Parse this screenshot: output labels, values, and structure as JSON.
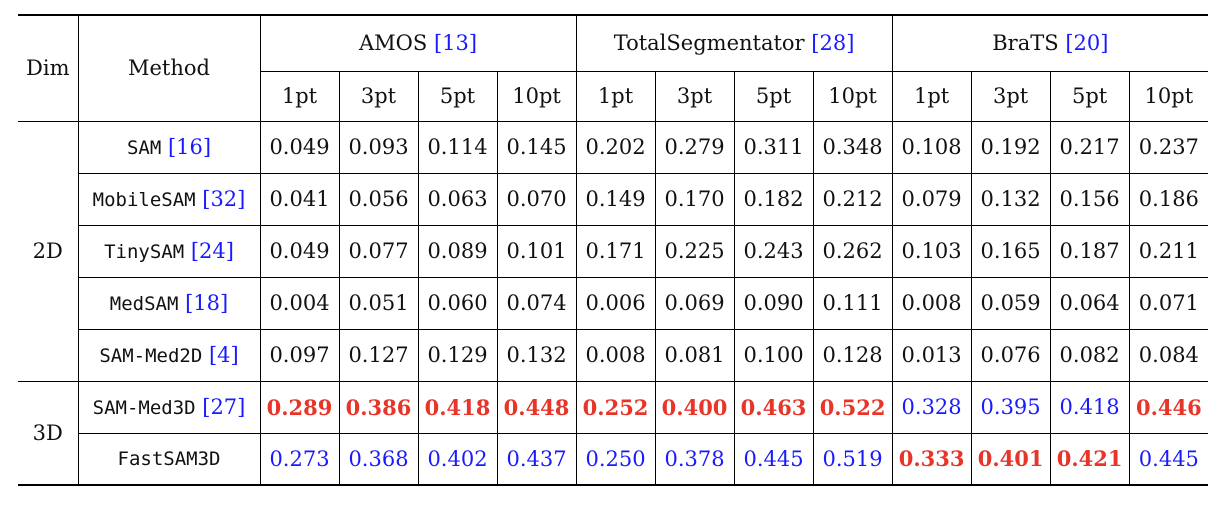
{
  "table": {
    "header": {
      "dim": "Dim",
      "method": "Method",
      "datasets": [
        {
          "name": "AMOS",
          "ref": "13"
        },
        {
          "name": "TotalSegmentator",
          "ref": "28"
        },
        {
          "name": "BraTS",
          "ref": "20"
        }
      ],
      "points": [
        "1pt",
        "3pt",
        "5pt",
        "10pt",
        "1pt",
        "3pt",
        "5pt",
        "10pt",
        "1pt",
        "3pt",
        "5pt",
        "10pt"
      ]
    },
    "groups": [
      {
        "dim": "2D",
        "rows": [
          {
            "method": "SAM",
            "ref": "16",
            "values": [
              "0.049",
              "0.093",
              "0.114",
              "0.145",
              "0.202",
              "0.279",
              "0.311",
              "0.348",
              "0.108",
              "0.192",
              "0.217",
              "0.237"
            ]
          },
          {
            "method": "MobileSAM",
            "ref": "32",
            "values": [
              "0.041",
              "0.056",
              "0.063",
              "0.070",
              "0.149",
              "0.170",
              "0.182",
              "0.212",
              "0.079",
              "0.132",
              "0.156",
              "0.186"
            ]
          },
          {
            "method": "TinySAM",
            "ref": "24",
            "values": [
              "0.049",
              "0.077",
              "0.089",
              "0.101",
              "0.171",
              "0.225",
              "0.243",
              "0.262",
              "0.103",
              "0.165",
              "0.187",
              "0.211"
            ]
          },
          {
            "method": "MedSAM",
            "ref": "18",
            "values": [
              "0.004",
              "0.051",
              "0.060",
              "0.074",
              "0.006",
              "0.069",
              "0.090",
              "0.111",
              "0.008",
              "0.059",
              "0.064",
              "0.071"
            ]
          },
          {
            "method": "SAM-Med2D",
            "ref": "4",
            "values": [
              "0.097",
              "0.127",
              "0.129",
              "0.132",
              "0.008",
              "0.081",
              "0.100",
              "0.128",
              "0.013",
              "0.076",
              "0.082",
              "0.084"
            ]
          }
        ]
      },
      {
        "dim": "3D",
        "rows": [
          {
            "method": "SAM-Med3D",
            "ref": "27",
            "values": [
              "0.289",
              "0.386",
              "0.418",
              "0.448",
              "0.252",
              "0.400",
              "0.463",
              "0.522",
              "0.328",
              "0.395",
              "0.418",
              "0.446"
            ],
            "styles": [
              "best",
              "best",
              "best",
              "best",
              "best",
              "best",
              "best",
              "best",
              "second",
              "second",
              "second",
              "best"
            ]
          },
          {
            "method": "FastSAM3D",
            "ref": "",
            "values": [
              "0.273",
              "0.368",
              "0.402",
              "0.437",
              "0.250",
              "0.378",
              "0.445",
              "0.519",
              "0.333",
              "0.401",
              "0.421",
              "0.445"
            ],
            "styles": [
              "second",
              "second",
              "second",
              "second",
              "second",
              "second",
              "second",
              "second",
              "best",
              "best",
              "best",
              "second"
            ]
          }
        ]
      }
    ],
    "colors": {
      "best": "#e8352a",
      "second": "#1a1aff",
      "ref": "#1a1aff"
    }
  }
}
